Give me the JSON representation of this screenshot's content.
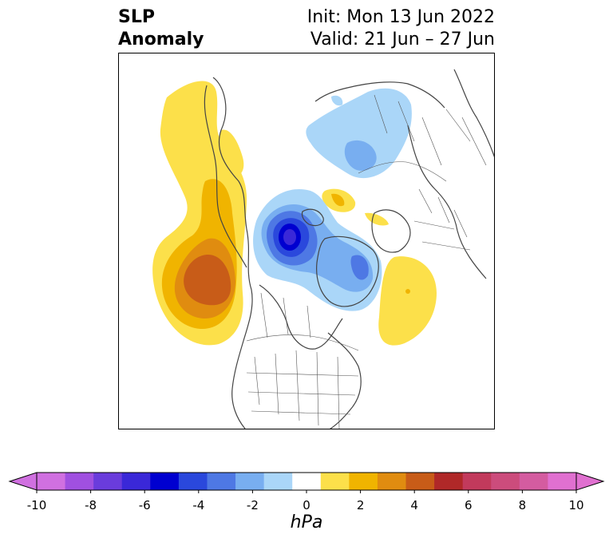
{
  "title": {
    "left_line1": "SLP",
    "left_line2": "Anomaly",
    "right_line1": "Init: Mon 13 Jun 2022",
    "right_line2": "Valid: 21 Jun – 27 Jun"
  },
  "colorbar": {
    "unit_label": "hPa",
    "ticks": [
      "-10",
      "-8",
      "-6",
      "-4",
      "-2",
      "0",
      "2",
      "4",
      "6",
      "8",
      "10"
    ],
    "colors": [
      "#d070e0",
      "#a050e0",
      "#6a3cdc",
      "#3a28d8",
      "#0000d0",
      "#2a48dc",
      "#4e78e4",
      "#78aef0",
      "#aad6f8",
      "#ffffff",
      "#fce04a",
      "#f0b400",
      "#e08c10",
      "#c85c18",
      "#b02828",
      "#c23a5c",
      "#cc4c7c",
      "#d45ca0",
      "#e070d0"
    ],
    "extend_low": "#d070e0",
    "extend_high": "#e070d0"
  },
  "map": {
    "projection": "north polar stereographic",
    "positive_color_light": "#fce04a",
    "positive_color_mid": "#f0b400",
    "positive_color_strong": "#e08c10",
    "positive_color_max": "#c85c18",
    "negative_color_light": "#aad6f8",
    "negative_color_mid": "#78aef0",
    "negative_color_strong": "#4e78e4",
    "negative_color_deep": "#2a48dc",
    "negative_color_max": "#0000d0"
  }
}
